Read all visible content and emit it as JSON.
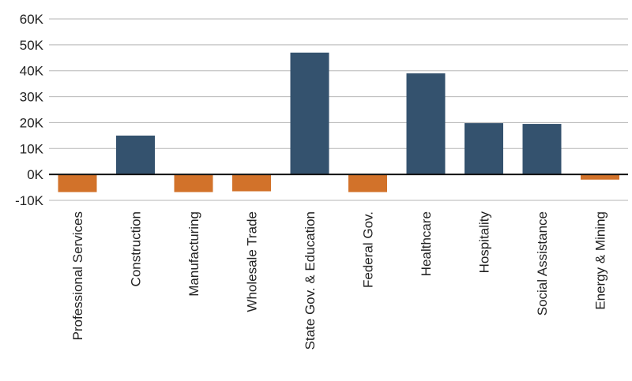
{
  "chart_data": {
    "type": "bar",
    "categories": [
      "Professional Services",
      "Construction",
      "Manufacturing",
      "Wholesale Trade",
      "State Gov. & Education",
      "Federal Gov.",
      "Healthcare",
      "Hospitality",
      "Social Assistance",
      "Energy & Mining"
    ],
    "values": [
      -6800,
      15000,
      -6800,
      -6500,
      47000,
      -6800,
      39000,
      19800,
      19500,
      -2000
    ],
    "ylim": [
      -10000,
      60000
    ],
    "yticks": [
      60000,
      50000,
      40000,
      30000,
      20000,
      10000,
      0,
      -10000
    ],
    "ytick_labels": [
      "60K",
      "50K",
      "40K",
      "30K",
      "20K",
      "10K",
      "0K",
      "-10K"
    ],
    "title": "",
    "xlabel": "",
    "ylabel": "",
    "grid": true,
    "colors": {
      "positive": "#34526e",
      "negative": "#d2722a"
    }
  }
}
